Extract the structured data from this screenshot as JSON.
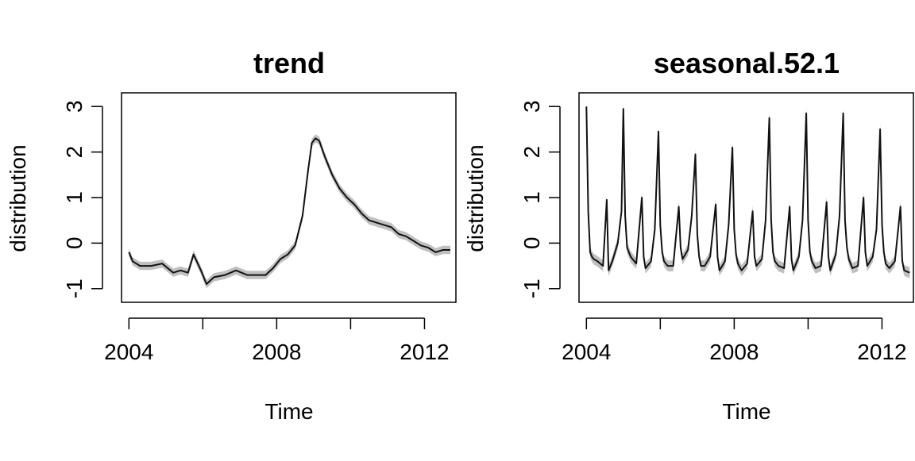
{
  "chart_data": [
    {
      "type": "line",
      "title": "trend",
      "xlabel": "Time",
      "ylabel": "distribution",
      "xlim": [
        2003.8,
        2012.85
      ],
      "ylim": [
        -1.3,
        3.3
      ],
      "xticks": [
        2004,
        2006,
        2008,
        2010,
        2012
      ],
      "xtick_labels": [
        "2004",
        "",
        "2008",
        "",
        "2012"
      ],
      "yticks": [
        -1,
        0,
        1,
        2,
        3
      ],
      "ytick_labels": [
        "-1",
        "0",
        "1",
        "2",
        "3"
      ],
      "grid": false,
      "series": [
        {
          "style": "median line with grey uncertainty band",
          "x": [
            2004.0,
            2004.1,
            2004.3,
            2004.6,
            2004.9,
            2005.2,
            2005.4,
            2005.6,
            2005.75,
            2005.95,
            2006.1,
            2006.3,
            2006.6,
            2006.9,
            2007.2,
            2007.5,
            2007.7,
            2007.9,
            2008.1,
            2008.3,
            2008.5,
            2008.7,
            2008.85,
            2008.95,
            2009.05,
            2009.15,
            2009.3,
            2009.5,
            2009.7,
            2009.9,
            2010.1,
            2010.3,
            2010.5,
            2010.7,
            2010.9,
            2011.1,
            2011.3,
            2011.5,
            2011.7,
            2011.9,
            2012.1,
            2012.3,
            2012.5,
            2012.7
          ],
          "y": [
            -0.2,
            -0.4,
            -0.5,
            -0.5,
            -0.45,
            -0.65,
            -0.6,
            -0.65,
            -0.25,
            -0.6,
            -0.9,
            -0.75,
            -0.7,
            -0.6,
            -0.7,
            -0.7,
            -0.7,
            -0.55,
            -0.35,
            -0.25,
            -0.05,
            0.6,
            1.6,
            2.2,
            2.3,
            2.25,
            1.9,
            1.5,
            1.2,
            1.0,
            0.85,
            0.65,
            0.5,
            0.45,
            0.4,
            0.35,
            0.2,
            0.15,
            0.05,
            -0.05,
            -0.1,
            -0.2,
            -0.15,
            -0.15
          ],
          "band": 0.09
        }
      ]
    },
    {
      "type": "line",
      "title": "seasonal.52.1",
      "xlabel": "Time",
      "ylabel": "distribution",
      "xlim": [
        2003.8,
        2012.85
      ],
      "ylim": [
        -1.3,
        3.3
      ],
      "xticks": [
        2004,
        2006,
        2008,
        2010,
        2012
      ],
      "xtick_labels": [
        "2004",
        "",
        "2008",
        "",
        "2012"
      ],
      "yticks": [
        -1,
        0,
        1,
        2,
        3
      ],
      "ytick_labels": [
        "-1",
        "0",
        "1",
        "2",
        "3"
      ],
      "grid": false,
      "series": [
        {
          "style": "median line with grey uncertainty band",
          "x": [
            2004.0,
            2004.05,
            2004.1,
            2004.15,
            2004.2,
            2004.3,
            2004.45,
            2004.55,
            2004.6,
            2004.7,
            2004.85,
            2004.95,
            2005.0,
            2005.05,
            2005.1,
            2005.2,
            2005.35,
            2005.5,
            2005.55,
            2005.6,
            2005.75,
            2005.85,
            2005.95,
            2006.0,
            2006.05,
            2006.1,
            2006.2,
            2006.35,
            2006.5,
            2006.55,
            2006.6,
            2006.75,
            2006.85,
            2006.95,
            2007.0,
            2007.05,
            2007.1,
            2007.2,
            2007.35,
            2007.5,
            2007.55,
            2007.6,
            2007.75,
            2007.85,
            2007.95,
            2008.0,
            2008.05,
            2008.1,
            2008.2,
            2008.35,
            2008.5,
            2008.55,
            2008.6,
            2008.75,
            2008.85,
            2008.95,
            2009.0,
            2009.05,
            2009.1,
            2009.2,
            2009.35,
            2009.5,
            2009.55,
            2009.6,
            2009.75,
            2009.85,
            2009.95,
            2010.0,
            2010.05,
            2010.1,
            2010.2,
            2010.35,
            2010.5,
            2010.55,
            2010.6,
            2010.75,
            2010.85,
            2010.95,
            2011.0,
            2011.05,
            2011.1,
            2011.2,
            2011.35,
            2011.5,
            2011.55,
            2011.6,
            2011.75,
            2011.85,
            2011.95,
            2012.0,
            2012.05,
            2012.1,
            2012.2,
            2012.35,
            2012.5,
            2012.55,
            2012.6,
            2012.75
          ],
          "y": [
            3.0,
            0.7,
            -0.2,
            -0.3,
            -0.35,
            -0.4,
            -0.5,
            0.95,
            -0.6,
            -0.4,
            0.0,
            0.7,
            2.95,
            0.6,
            -0.1,
            -0.3,
            -0.45,
            1.0,
            -0.3,
            -0.55,
            -0.4,
            0.3,
            2.45,
            0.4,
            -0.2,
            -0.4,
            -0.5,
            -0.5,
            0.8,
            -0.1,
            -0.35,
            -0.15,
            0.6,
            1.95,
            0.2,
            -0.3,
            -0.5,
            -0.5,
            -0.3,
            0.85,
            -0.3,
            -0.6,
            -0.4,
            0.4,
            2.1,
            0.3,
            -0.25,
            -0.45,
            -0.6,
            -0.45,
            0.7,
            -0.3,
            -0.5,
            -0.35,
            0.5,
            2.75,
            0.5,
            -0.2,
            -0.4,
            -0.5,
            -0.55,
            0.8,
            -0.35,
            -0.6,
            -0.3,
            0.5,
            2.85,
            0.5,
            -0.2,
            -0.4,
            -0.55,
            -0.5,
            0.9,
            -0.3,
            -0.6,
            -0.25,
            0.6,
            2.85,
            0.5,
            -0.1,
            -0.35,
            -0.55,
            -0.5,
            1.0,
            -0.2,
            -0.5,
            -0.3,
            0.3,
            2.5,
            0.4,
            -0.2,
            -0.45,
            -0.55,
            -0.4,
            0.8,
            -0.4,
            -0.6,
            -0.65
          ],
          "band": 0.12
        }
      ]
    }
  ]
}
